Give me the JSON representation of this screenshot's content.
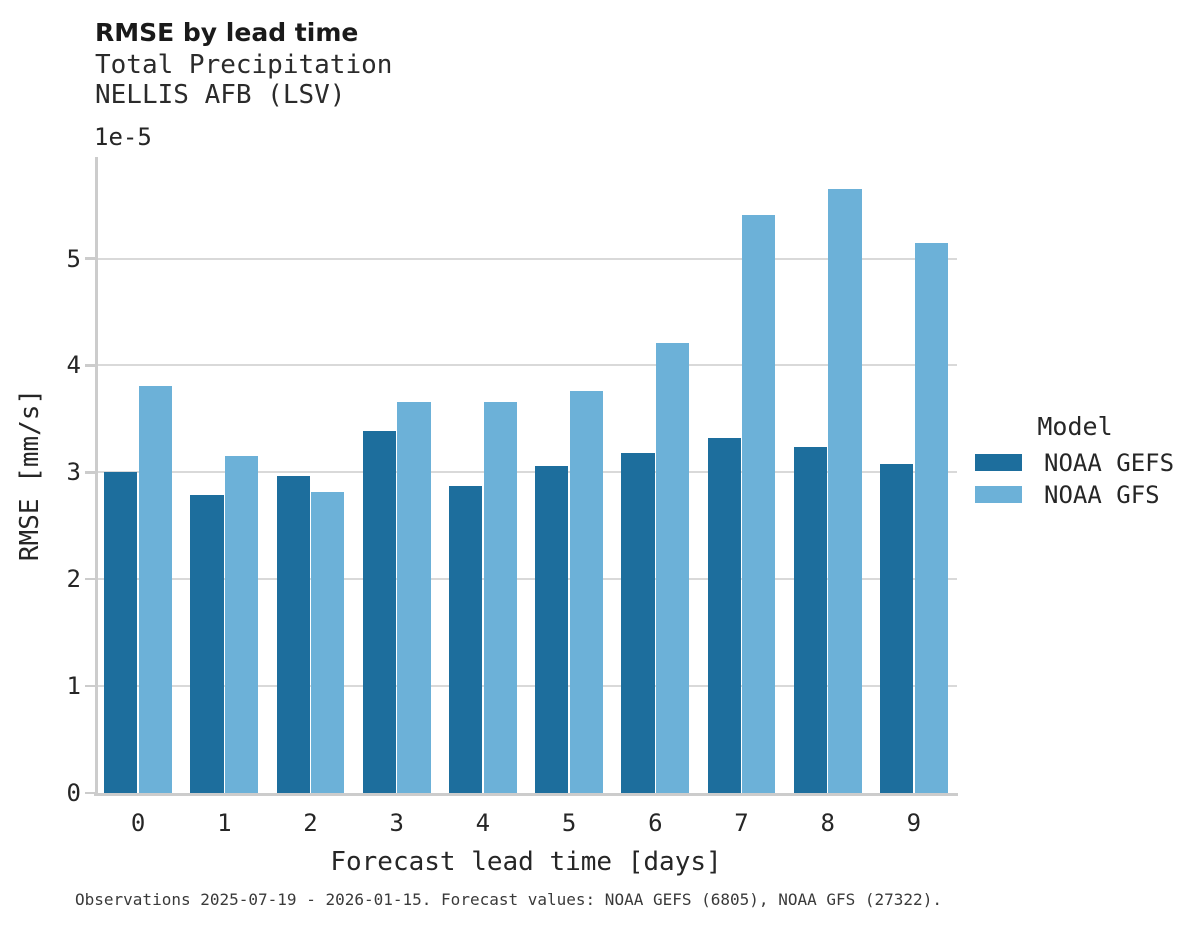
{
  "chart_data": {
    "type": "bar",
    "title": "RMSE by lead time",
    "subtitle_lines": [
      "Total Precipitation",
      "NELLIS AFB (LSV)"
    ],
    "xlabel": "Forecast lead time [days]",
    "ylabel": "RMSE [mm/s]",
    "y_offset_label": "1e-5",
    "value_scale_note": "y values are in units of 1e-5 mm/s",
    "categories": [
      "0",
      "1",
      "2",
      "3",
      "4",
      "5",
      "6",
      "7",
      "8",
      "9"
    ],
    "series": [
      {
        "name": "NOAA GEFS",
        "color": "#1d6e9d",
        "values": [
          3.0,
          2.79,
          2.97,
          3.39,
          2.87,
          3.06,
          3.18,
          3.32,
          3.24,
          3.08
        ]
      },
      {
        "name": "NOAA GFS",
        "color": "#6cb1d8",
        "values": [
          3.81,
          3.15,
          2.82,
          3.66,
          3.66,
          3.76,
          4.21,
          5.41,
          5.65,
          5.15
        ]
      }
    ],
    "yticks": [
      0,
      1,
      2,
      3,
      4,
      5
    ],
    "ylim": [
      0,
      5.95
    ],
    "grid": "horizontal",
    "legend": {
      "title": "Model",
      "position": "right"
    },
    "caption": "Observations 2025-07-19 - 2026-01-15. Forecast values: NOAA GEFS (6805), NOAA GFS (27322).",
    "colors": {
      "grid": "#d9d9d9",
      "spine": "#cccccc",
      "text": "#262626"
    }
  }
}
